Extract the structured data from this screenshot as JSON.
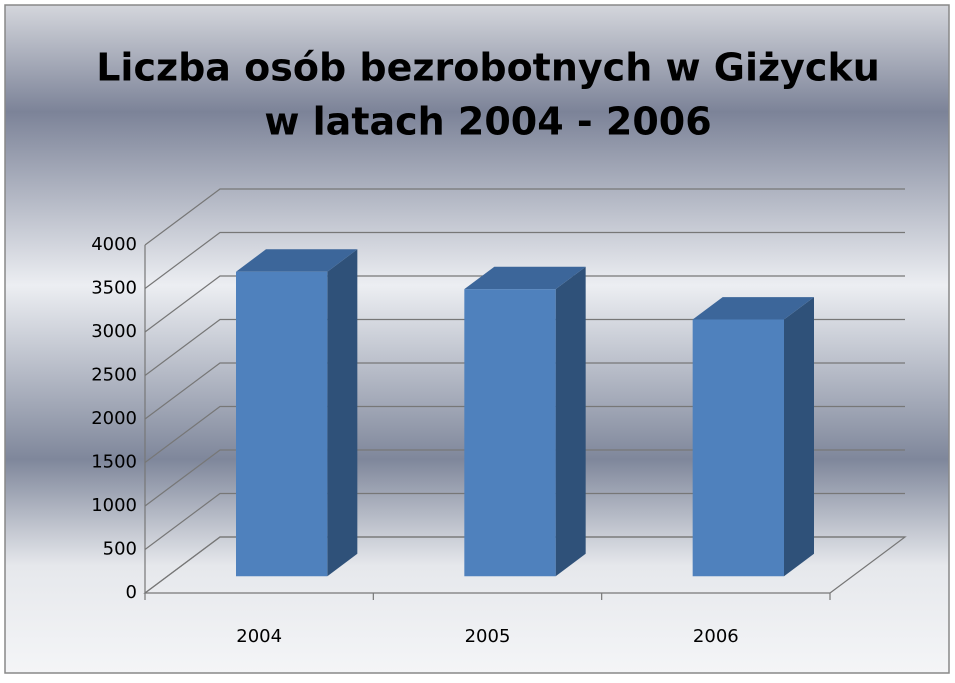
{
  "chart_data": {
    "type": "bar3d",
    "title": "Liczba osób bezrobotnych w Giżycku",
    "subtitle": "w latach 2004 - 2006",
    "categories": [
      "2004",
      "2005",
      "2006"
    ],
    "values": [
      3500,
      3300,
      2950
    ],
    "color": "#4f81bd",
    "ylim": [
      0,
      4000
    ],
    "yticks": [
      0,
      500,
      1000,
      1500,
      2000,
      2500,
      3000,
      3500,
      4000
    ],
    "grid": true
  }
}
